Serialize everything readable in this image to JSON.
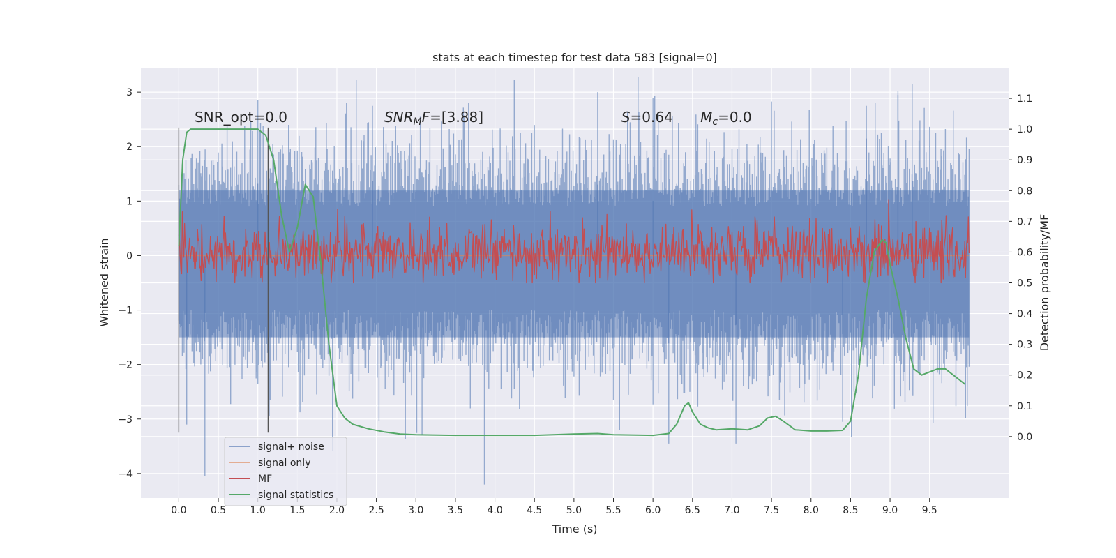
{
  "chart_data": {
    "type": "line",
    "title": "stats at each timestep for test data 583 [signal=0]",
    "xlabel": "Time (s)",
    "ylabel": "Whitened strain",
    "y2label": "Detection probability/MF",
    "xlim": [
      -0.48,
      10.5
    ],
    "ylim": [
      -4.45,
      3.45
    ],
    "y2lim": [
      -0.2,
      1.2
    ],
    "x_ticks": [
      0.0,
      0.5,
      1.0,
      1.5,
      2.0,
      2.5,
      3.0,
      3.5,
      4.0,
      4.5,
      5.0,
      5.5,
      6.0,
      6.5,
      7.0,
      7.5,
      8.0,
      8.5,
      9.0,
      9.5
    ],
    "x_tick_labels": [
      "0.0",
      "0.5",
      "1.0",
      "1.5",
      "2.0",
      "2.5",
      "3.0",
      "3.5",
      "4.0",
      "4.5",
      "5.0",
      "5.5",
      "6.0",
      "6.5",
      "7.0",
      "7.5",
      "8.0",
      "8.5",
      "9.0",
      "9.5"
    ],
    "y_ticks": [
      3,
      2,
      1,
      0,
      -1,
      -2,
      -3,
      -4
    ],
    "y_tick_labels": [
      "3",
      "2",
      "1",
      "0",
      "−1",
      "−2",
      "−3",
      "−4"
    ],
    "y2_ticks": [
      1.1,
      1.0,
      0.9,
      0.8,
      0.7,
      0.6,
      0.5,
      0.4,
      0.3,
      0.2,
      0.1,
      0.0
    ],
    "y2_tick_labels": [
      "1.1",
      "1.0",
      "0.9",
      "0.8",
      "0.7",
      "0.6",
      "0.5",
      "0.4",
      "0.3",
      "0.2",
      "0.1",
      "0.0"
    ],
    "grid": true,
    "legend_position": "lower-left",
    "annotations": [
      {
        "text": "SNR_opt=0.0",
        "x": 0.2,
        "y": 2.45
      },
      {
        "text": "SNR_MF=[3.88]",
        "x": 2.6,
        "y": 2.45
      },
      {
        "text": "S=0.64",
        "x": 5.6,
        "y": 2.45
      },
      {
        "text": "M_c=0.0",
        "x": 6.6,
        "y": 2.45
      }
    ],
    "vlines": [
      {
        "x": 0.0,
        "ymin": -3.25,
        "ymax": 2.35
      },
      {
        "x": 1.13,
        "ymin": -3.25,
        "ymax": 2.35
      }
    ],
    "series": [
      {
        "name": "signal+ noise",
        "color": "#4c72b0",
        "axis": "left",
        "kind": "noise",
        "x_range": [
          0.0,
          10.0
        ],
        "band_low": -1.5,
        "band_high": 1.2,
        "spikes": [
          {
            "x": 0.33,
            "y": -4.05
          },
          {
            "x": 1.0,
            "y": 2.85
          },
          {
            "x": 2.45,
            "y": 2.75
          },
          {
            "x": 5.3,
            "y": 3.0
          },
          {
            "x": 6.0,
            "y": 2.9
          },
          {
            "x": 6.2,
            "y": -3.45
          },
          {
            "x": 7.05,
            "y": -3.45
          },
          {
            "x": 8.7,
            "y": 2.75
          },
          {
            "x": 8.4,
            "y": -3.05
          },
          {
            "x": 9.28,
            "y": 3.15
          },
          {
            "x": 9.1,
            "y": 2.95
          },
          {
            "x": 0.1,
            "y": -3.1
          }
        ]
      },
      {
        "name": "signal only",
        "color": "#dd8452",
        "axis": "left",
        "kind": "flat",
        "x": [
          0.0,
          10.0
        ],
        "y": [
          0.0,
          0.0
        ]
      },
      {
        "name": "MF",
        "color": "#c44e52",
        "axis": "right",
        "kind": "mf",
        "x_range": [
          0.0,
          10.0
        ],
        "base": 0.6,
        "amplitude": 0.08,
        "max": 0.78
      },
      {
        "name": "signal statistics",
        "color": "#55a868",
        "axis": "right",
        "kind": "line",
        "x": [
          0.0,
          0.05,
          0.1,
          0.15,
          0.2,
          0.3,
          0.5,
          0.7,
          0.9,
          1.0,
          1.1,
          1.2,
          1.3,
          1.4,
          1.5,
          1.6,
          1.7,
          1.8,
          1.9,
          2.0,
          2.1,
          2.2,
          2.4,
          2.6,
          2.8,
          3.0,
          3.5,
          4.0,
          4.5,
          5.0,
          5.3,
          5.5,
          6.0,
          6.2,
          6.3,
          6.4,
          6.45,
          6.5,
          6.6,
          6.7,
          6.8,
          7.0,
          7.2,
          7.35,
          7.45,
          7.55,
          7.65,
          7.8,
          8.0,
          8.2,
          8.4,
          8.5,
          8.6,
          8.7,
          8.8,
          8.9,
          8.95,
          9.0,
          9.1,
          9.2,
          9.3,
          9.4,
          9.5,
          9.6,
          9.7,
          9.8,
          9.9,
          9.95
        ],
        "y": [
          0.62,
          0.9,
          0.99,
          1.0,
          1.0,
          1.0,
          1.0,
          1.0,
          1.0,
          1.0,
          0.98,
          0.9,
          0.72,
          0.6,
          0.68,
          0.82,
          0.78,
          0.56,
          0.3,
          0.1,
          0.06,
          0.04,
          0.025,
          0.015,
          0.008,
          0.006,
          0.004,
          0.004,
          0.004,
          0.008,
          0.01,
          0.006,
          0.004,
          0.01,
          0.04,
          0.1,
          0.11,
          0.08,
          0.04,
          0.028,
          0.022,
          0.025,
          0.022,
          0.035,
          0.06,
          0.066,
          0.05,
          0.022,
          0.018,
          0.018,
          0.02,
          0.05,
          0.2,
          0.45,
          0.6,
          0.64,
          0.63,
          0.56,
          0.45,
          0.32,
          0.22,
          0.2,
          0.21,
          0.22,
          0.22,
          0.2,
          0.18,
          0.17
        ]
      }
    ]
  }
}
